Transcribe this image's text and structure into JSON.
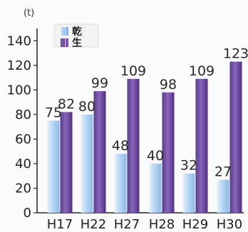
{
  "chart_data": {
    "type": "bar",
    "unit": "(t)",
    "categories": [
      "H17",
      "H22",
      "H27",
      "H28",
      "H29",
      "H30"
    ],
    "series": [
      {
        "name": "乾",
        "color": "#b8d6f5",
        "values": [
          75,
          80,
          48,
          40,
          32,
          27
        ]
      },
      {
        "name": "生",
        "color": "#7852a8",
        "values": [
          82,
          99,
          109,
          98,
          109,
          123
        ]
      }
    ],
    "ylim": [
      0,
      150
    ],
    "yticks": [
      0,
      20,
      40,
      60,
      80,
      100,
      120,
      140
    ],
    "legend": "top-left",
    "grid": false
  }
}
